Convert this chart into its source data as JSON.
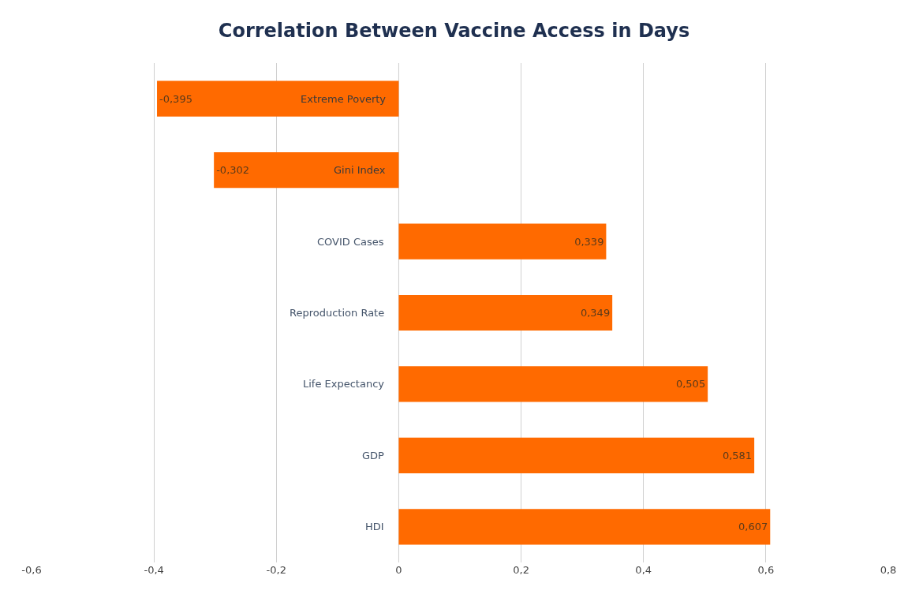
{
  "chart_data": {
    "type": "bar",
    "orientation": "horizontal",
    "title": "Correlation Between Vaccine Access in Days",
    "categories": [
      "Extreme Poverty",
      "Gini Index",
      "COVID Cases",
      "Reproduction Rate",
      "Life Expectancy",
      "GDP",
      "HDI"
    ],
    "values": [
      -0.395,
      -0.302,
      0.339,
      0.349,
      0.505,
      0.581,
      0.607
    ],
    "value_labels": [
      "-0,395",
      "-0,302",
      "0,339",
      "0,349",
      "0,505",
      "0,581",
      "0,607"
    ],
    "color": "#ff6a00",
    "xlim": [
      -0.6,
      0.8
    ],
    "xticks": [
      {
        "value": -0.6,
        "label": "-0,6"
      },
      {
        "value": -0.4,
        "label": "-0,4"
      },
      {
        "value": -0.2,
        "label": "-0,2"
      },
      0,
      {
        "value": 0.2,
        "label": "0,2"
      },
      {
        "value": 0.4,
        "label": "0,4"
      },
      {
        "value": 0.6,
        "label": "0,6"
      },
      {
        "value": 0.8,
        "label": "0,8"
      }
    ],
    "grid": "x",
    "legend": false
  }
}
